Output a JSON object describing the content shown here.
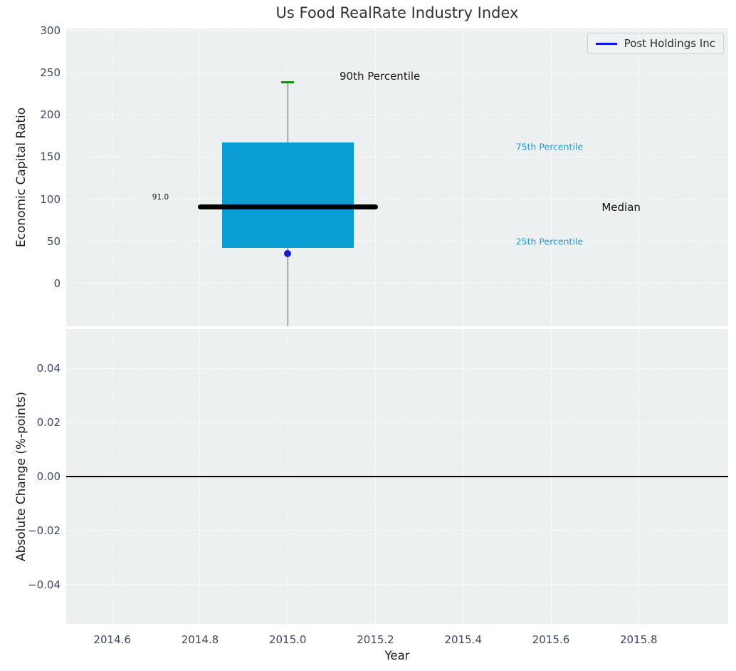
{
  "title": "Us Food RealRate Industry Index",
  "legend": {
    "label": "Post Holdings Inc",
    "line_color": "#1414e6",
    "position": "upper right"
  },
  "colors": {
    "axes_background": "#ecf0f1",
    "grid": "#ffffff",
    "box_fill": "#099dd3",
    "median_line": "#000000",
    "whisker_line": "#555555",
    "p90_cap": "#1b8a1b",
    "company_point": "#1a1ad0",
    "zero_line": "#000000",
    "tick_label": "#3b4a63",
    "percentile_text": "#1c9cd6"
  },
  "chart_data": [
    {
      "type": "boxplot",
      "title": "Us Food RealRate Industry Index",
      "xlabel": "Year",
      "ylabel": "Economic Capital Ratio",
      "xlim": [
        2014.495,
        2016.004
      ],
      "ylim": [
        -50.7,
        302.4
      ],
      "grid": true,
      "xticks": [
        2014.6,
        2014.8,
        2015.0,
        2015.2,
        2015.4,
        2015.6,
        2015.8
      ],
      "xtick_labels": [
        "2014.6",
        "2014.8",
        "2015.0",
        "2015.2",
        "2015.4",
        "2015.6",
        "2015.8"
      ],
      "yticks": [
        0,
        50,
        100,
        150,
        200,
        250,
        300
      ],
      "ytick_labels": [
        "0",
        "50",
        "100",
        "150",
        "200",
        "250",
        "300"
      ],
      "box": {
        "x": 2015.0,
        "box_halfwidth": 0.15,
        "median_halfwidth": 0.205,
        "cap_halfwidth": 0.015,
        "q1": 42,
        "median": 91.0,
        "q3": 167.5,
        "p90": 238.5,
        "whisker_low_clipped_below_axis": true
      },
      "series": [
        {
          "name": "Post Holdings Inc",
          "marker": "circle",
          "color": "#1a1ad0",
          "x": [
            2015.0
          ],
          "y": [
            35.5
          ]
        }
      ],
      "annotations": [
        {
          "text": "90th Percentile",
          "x": 2015.21,
          "y": 246,
          "color": "#1a1a1a",
          "align": "center",
          "style": "large"
        },
        {
          "text": "75th Percentile",
          "x": 2015.52,
          "y": 162,
          "color": "#1c9cd6",
          "align": "left",
          "style": "small"
        },
        {
          "text": "Median",
          "x": 2015.76,
          "y": 90,
          "color": "#111111",
          "align": "center",
          "style": "large"
        },
        {
          "text": "25th Percentile",
          "x": 2015.52,
          "y": 50,
          "color": "#1c9cd6",
          "align": "left",
          "style": "small"
        },
        {
          "text": "91.0",
          "x": 2014.71,
          "y": 102,
          "color": "#1a1a1a",
          "align": "center",
          "style": "tiny"
        }
      ]
    },
    {
      "type": "line",
      "xlabel": "Year",
      "ylabel": "Absolute Change (%-points)",
      "xlim": [
        2014.495,
        2016.004
      ],
      "ylim": [
        -0.0545,
        0.0545
      ],
      "grid": true,
      "xticks": [
        2014.6,
        2014.8,
        2015.0,
        2015.2,
        2015.4,
        2015.6,
        2015.8
      ],
      "xtick_labels": [
        "2014.6",
        "2014.8",
        "2015.0",
        "2015.2",
        "2015.4",
        "2015.6",
        "2015.8"
      ],
      "yticks": [
        0.04,
        0.02,
        0.0,
        -0.02,
        -0.04
      ],
      "ytick_labels": [
        "0.04",
        "0.02",
        "0.00",
        "−0.02",
        "−0.04"
      ],
      "zero_line": {
        "y": 0.0,
        "color": "#000000"
      }
    }
  ]
}
